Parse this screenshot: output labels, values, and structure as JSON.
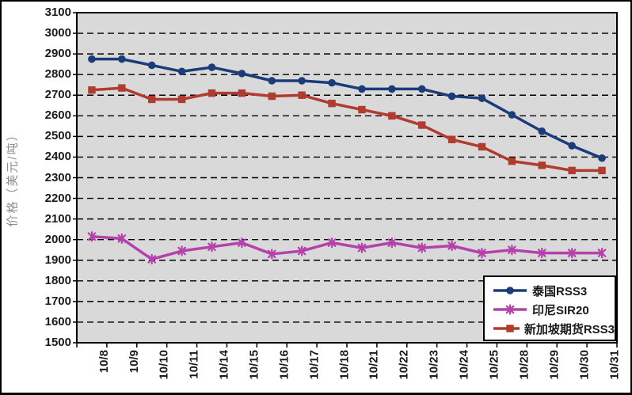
{
  "chart_data": {
    "type": "line",
    "ylabel": "价格（美元/吨）",
    "xlabel": "",
    "ylim": [
      1500,
      3100
    ],
    "ytick_interval": 100,
    "grid": "horizontal-dashed",
    "plot_bg_color": "#d9d9d9",
    "gridline_color": "#000000",
    "legend_position": "inside-bottom-right",
    "categories": [
      "10/8",
      "10/9",
      "10/10",
      "10/11",
      "10/14",
      "10/15",
      "10/16",
      "10/17",
      "10/18",
      "10/21",
      "10/22",
      "10/23",
      "10/24",
      "10/25",
      "10/28",
      "10/29",
      "10/30",
      "10/31"
    ],
    "series": [
      {
        "key": "thailand-rss3",
        "name": "泰国RSS3",
        "color": "#1b3c78",
        "marker": "circle",
        "values": [
          2875,
          2875,
          2845,
          2815,
          2835,
          2805,
          2770,
          2770,
          2760,
          2730,
          2730,
          2730,
          2695,
          2685,
          2605,
          2525,
          2455,
          2395
        ]
      },
      {
        "key": "indonesia-sir20",
        "name": "印尼SIR20",
        "color": "#b441ac",
        "marker": "asterisk",
        "values": [
          2015,
          2005,
          1905,
          1945,
          1965,
          1985,
          1930,
          1945,
          1985,
          1960,
          1985,
          1960,
          1970,
          1935,
          1950,
          1935,
          1935,
          1935
        ]
      },
      {
        "key": "singapore-futures-rss3",
        "name": "新加坡期货RSS3",
        "color": "#b03b2e",
        "marker": "square",
        "values": [
          2725,
          2735,
          2680,
          2680,
          2710,
          2710,
          2695,
          2700,
          2660,
          2630,
          2600,
          2555,
          2485,
          2450,
          2380,
          2360,
          2335,
          2335
        ]
      }
    ]
  }
}
